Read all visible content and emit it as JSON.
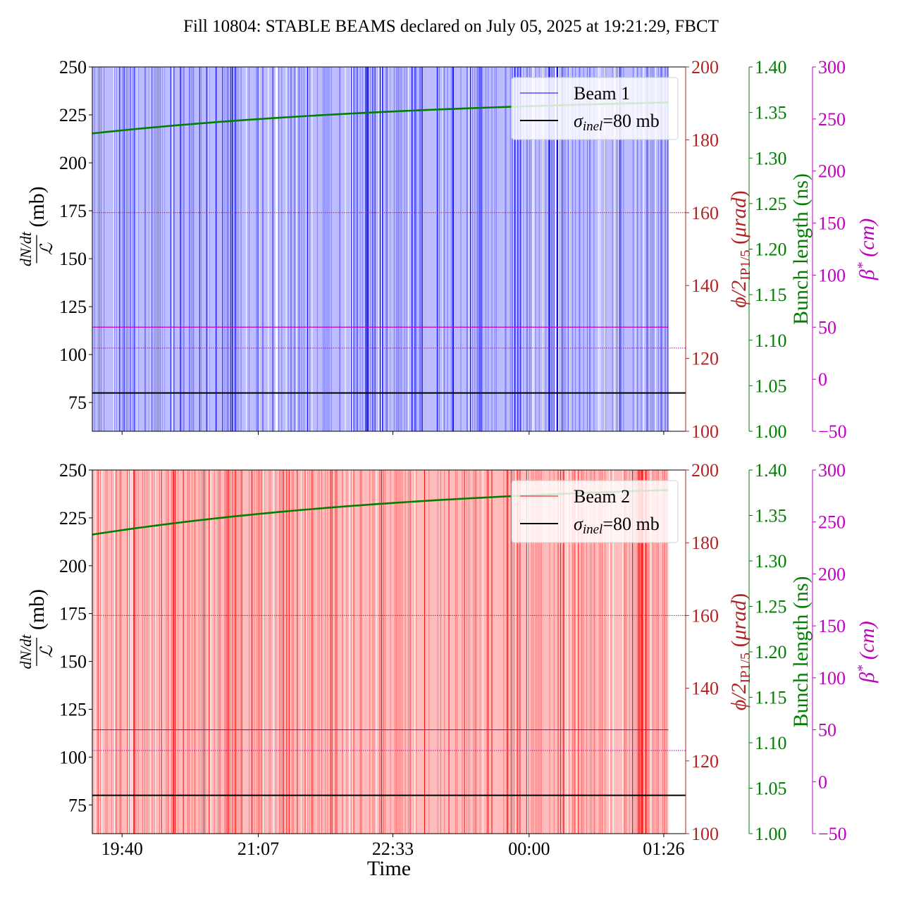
{
  "title": "Fill 10804: STABLE BEAMS declared on July 05, 2025 at 19:21:29, FBCT",
  "colors": {
    "beam1": "#0000ff",
    "beam2": "#ff0000",
    "bunch_length": "#007f00",
    "crossing_angle": "#b22222",
    "beta_star": "#c000c0",
    "sigma_inel": "#000000"
  },
  "chart_data": {
    "type": "line",
    "xlabel": "Time",
    "x_ticks": [
      "19:40",
      "21:07",
      "22:33",
      "00:00",
      "01:26"
    ],
    "x_range": [
      "19:21",
      "01:40"
    ],
    "data_span": [
      "19:21",
      "01:29"
    ],
    "grid": false,
    "axes_labels": {
      "left": "dN/dt / 𝓛 (mb)",
      "crossing_angle": "ϕ/2IP1/5 (μrad)",
      "bunch_length": "Bunch length (ns)",
      "beta_star": "β* (cm)"
    },
    "axes": {
      "left": {
        "ylim": [
          60,
          250
        ],
        "ticks": [
          "75",
          "100",
          "125",
          "150",
          "175",
          "200",
          "225",
          "250"
        ]
      },
      "crossing_angle": {
        "ylim": [
          100,
          200
        ],
        "ticks": [
          "100",
          "120",
          "140",
          "160",
          "180",
          "200"
        ]
      },
      "bunch_length": {
        "ylim": [
          1.0,
          1.4
        ],
        "ticks": [
          "1.00",
          "1.05",
          "1.10",
          "1.15",
          "1.20",
          "1.25",
          "1.30",
          "1.35",
          "1.40"
        ]
      },
      "beta_star": {
        "ylim": [
          -50,
          300
        ],
        "ticks": [
          "−50",
          "0",
          "50",
          "100",
          "150",
          "200",
          "250",
          "300"
        ]
      }
    },
    "panels": [
      {
        "beam_series": "Beam 1",
        "legend": [
          "Beam 1",
          "σinel=80 mb"
        ],
        "legend_position": "top-right",
        "sigma_inel_mb": 80,
        "crossing_angle_urad": 160,
        "beta_star_cm": [
          30,
          50
        ],
        "bunch_length_ns": {
          "start": 1.327,
          "end": 1.361
        }
      },
      {
        "beam_series": "Beam 2",
        "legend": [
          "Beam 2",
          "σinel=80 mb"
        ],
        "legend_position": "top-right",
        "sigma_inel_mb": 80,
        "crossing_angle_urad": 160,
        "beta_star_cm": [
          30,
          50
        ],
        "bunch_length_ns": {
          "start": 1.329,
          "end": 1.378
        }
      }
    ]
  }
}
